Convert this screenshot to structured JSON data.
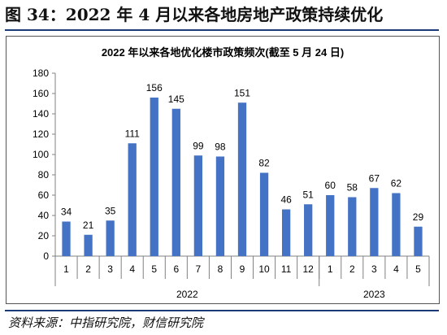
{
  "figure": {
    "title": "图 34：2022 年 4 月以来各地房地产政策持续优化",
    "source": "资料来源：中指研究院，财信研究院"
  },
  "chart_data": {
    "type": "bar",
    "title": "2022 年以来各地优化楼市政策频次(截至 5 月 24 日)",
    "xlabel": "",
    "ylabel": "",
    "categories": [
      "1",
      "2",
      "3",
      "4",
      "5",
      "6",
      "7",
      "8",
      "9",
      "10",
      "11",
      "12",
      "1",
      "2",
      "3",
      "4",
      "5"
    ],
    "groups": [
      {
        "label": "2022",
        "count": 12
      },
      {
        "label": "2023",
        "count": 5
      }
    ],
    "values": [
      34,
      21,
      35,
      111,
      156,
      145,
      99,
      98,
      151,
      82,
      46,
      51,
      60,
      58,
      67,
      62,
      29
    ],
    "ylim": [
      0,
      180
    ],
    "yticks": [
      0,
      20,
      40,
      60,
      80,
      100,
      120,
      140,
      160,
      180
    ],
    "bar_color": "#4472C4",
    "grid": false,
    "legend": "none"
  }
}
